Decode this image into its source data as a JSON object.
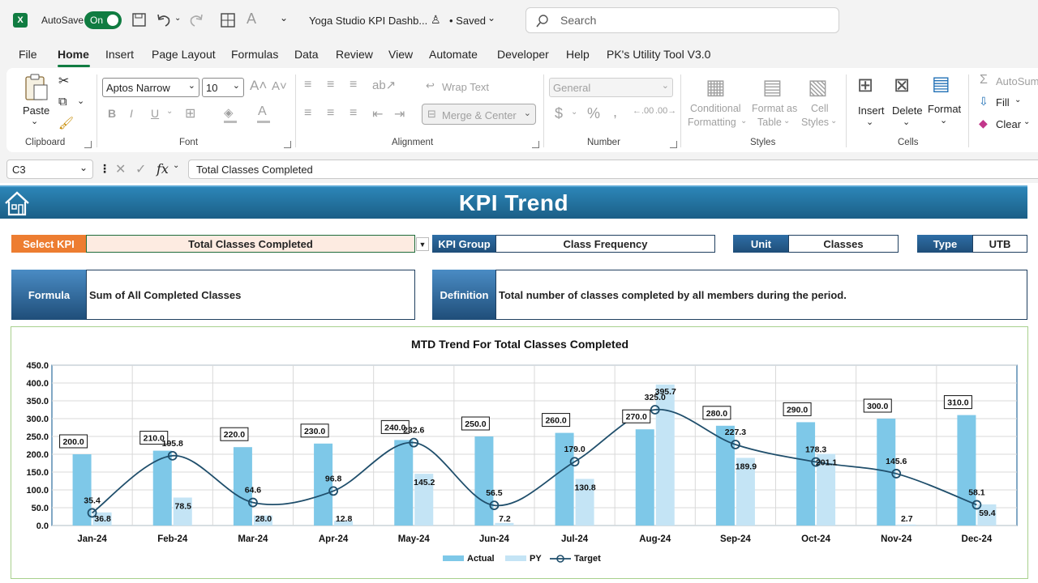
{
  "titlebar": {
    "autosave_label": "AutoSave",
    "autosave_state": "On",
    "doc_title": "Yoga Studio KPI Dashb...",
    "saved_status": "• Saved",
    "search_placeholder": "Search"
  },
  "menu": {
    "items": [
      "File",
      "Home",
      "Insert",
      "Page Layout",
      "Formulas",
      "Data",
      "Review",
      "View",
      "Automate",
      "Developer",
      "Help",
      "PK's Utility Tool V3.0"
    ],
    "active": "Home"
  },
  "ribbon": {
    "clipboard": {
      "paste": "Paste",
      "label": "Clipboard"
    },
    "font": {
      "name": "Aptos Narrow",
      "size": "10",
      "label": "Font"
    },
    "alignment": {
      "wrap": "Wrap Text",
      "merge": "Merge & Center",
      "label": "Alignment"
    },
    "number": {
      "format": "General",
      "label": "Number"
    },
    "styles": {
      "conditional_1": "Conditional",
      "conditional_2": "Formatting",
      "format_as_1": "Format as",
      "format_as_2": "Table",
      "cell_1": "Cell",
      "cell_2": "Styles",
      "label": "Styles"
    },
    "cells": {
      "insert": "Insert",
      "delete": "Delete",
      "format": "Format",
      "label": "Cells"
    },
    "editing": {
      "autosum": "AutoSum",
      "fill": "Fill",
      "clear": "Clear"
    }
  },
  "formula_bar": {
    "cell_ref": "C3",
    "fx": "fx",
    "content": "Total Classes Completed"
  },
  "dashboard": {
    "title": "KPI Trend",
    "select_kpi_label": "Select KPI",
    "select_kpi_value": "Total Classes Completed",
    "kpi_group_label": "KPI Group",
    "kpi_group_value": "Class Frequency",
    "unit_label": "Unit",
    "unit_value": "Classes",
    "type_label": "Type",
    "type_value": "UTB",
    "formula_label": "Formula",
    "formula_value": "Sum of All Completed Classes",
    "definition_label": "Definition",
    "definition_value": "Total number of classes completed by all members during the period."
  },
  "colors": {
    "actual": "#7ec8e8",
    "py": "#c4e4f5",
    "target": "#1f4e6b",
    "header": "#1f6f9c",
    "orange": "#ed7d31"
  },
  "chart_data": {
    "type": "bar",
    "title": "MTD Trend For Total Classes Completed",
    "categories": [
      "Jan-24",
      "Feb-24",
      "Mar-24",
      "Apr-24",
      "May-24",
      "Jun-24",
      "Jul-24",
      "Aug-24",
      "Sep-24",
      "Oct-24",
      "Nov-24",
      "Dec-24"
    ],
    "series": [
      {
        "name": "Actual",
        "type": "bar",
        "values": [
          200,
          210,
          220,
          230,
          240,
          250,
          260,
          270,
          280,
          290,
          300,
          310
        ],
        "labels": [
          "200.0",
          "210.0",
          "220.0",
          "230.0",
          "240.0",
          "250.0",
          "260.0",
          "270.0",
          "280.0",
          "290.0",
          "300.0",
          "310.0"
        ]
      },
      {
        "name": "PY",
        "type": "bar",
        "values": [
          36.8,
          78.5,
          28.0,
          12.8,
          145.2,
          7.2,
          130.8,
          395.7,
          189.9,
          201.1,
          2.7,
          59.4
        ],
        "labels": [
          "36.8",
          "78.5",
          "28.0",
          "12.8",
          "145.2",
          "7.2",
          "130.8",
          "395.7",
          "189.9",
          "201.1",
          "2.7",
          "59.4"
        ]
      },
      {
        "name": "Target",
        "type": "line",
        "values": [
          35.4,
          195.8,
          64.6,
          96.8,
          232.6,
          56.5,
          179.0,
          325.0,
          227.3,
          178.3,
          145.6,
          58.1
        ],
        "labels": [
          "35.4",
          "195.8",
          "64.6",
          "96.8",
          "232.6",
          "56.5",
          "179.0",
          "325.0",
          "227.3",
          "178.3",
          "145.6",
          "58.1"
        ]
      }
    ],
    "ylim": [
      0,
      450
    ],
    "yticks": [
      "0.0",
      "50.0",
      "100.0",
      "150.0",
      "200.0",
      "250.0",
      "300.0",
      "350.0",
      "400.0",
      "450.0"
    ],
    "xlabel": "",
    "ylabel": "",
    "grid": true,
    "legend": "bottom"
  }
}
